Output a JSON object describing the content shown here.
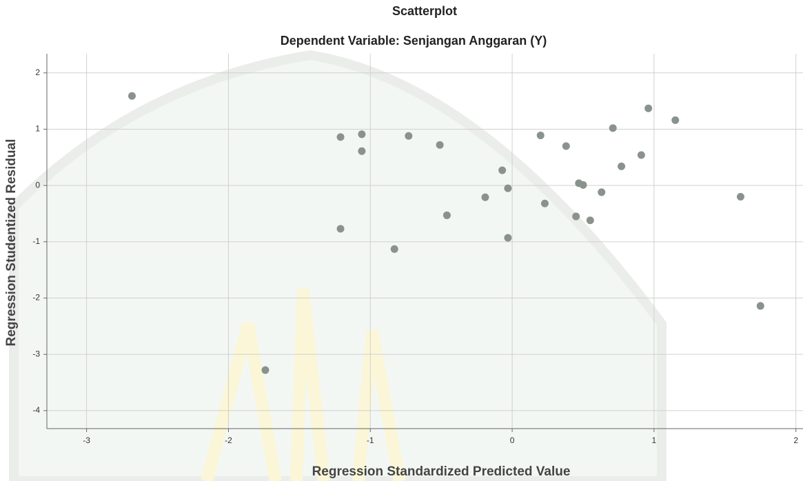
{
  "chart_data": {
    "type": "scatter",
    "title": "Scatterplot",
    "subtitle": "Dependent Variable: Senjangan Anggaran (Y)",
    "x_label": "Regression Standardized Predicted Value",
    "y_label": "Regression Studentized Residual",
    "xlim": [
      -3.28,
      2.05
    ],
    "ylim": [
      -4.32,
      2.34
    ],
    "xticks": [
      -3,
      -2,
      -1,
      0,
      1,
      2
    ],
    "yticks": [
      -4,
      -3,
      -2,
      -1,
      0,
      1,
      2
    ],
    "grid": true,
    "series": [
      {
        "color": "#8a928c",
        "x": [
          -2.68,
          -1.74,
          -1.21,
          -1.06,
          -1.06,
          -1.21,
          -0.73,
          -0.51,
          -0.83,
          -0.46,
          -0.07,
          -0.03,
          -0.19,
          -0.03,
          0.2,
          0.38,
          0.23,
          0.45,
          0.47,
          0.5,
          0.55,
          0.63,
          0.71,
          0.77,
          0.91,
          0.96,
          1.15,
          1.61,
          1.75
        ],
        "values": [
          1.59,
          -3.28,
          0.86,
          0.91,
          0.61,
          -0.77,
          0.88,
          0.72,
          -1.13,
          -0.53,
          0.27,
          -0.05,
          -0.21,
          -0.93,
          0.89,
          0.7,
          -0.32,
          -0.55,
          0.04,
          0.01,
          -0.62,
          -0.12,
          1.02,
          0.34,
          0.54,
          1.37,
          1.16,
          -0.2,
          -2.14
        ]
      }
    ]
  }
}
